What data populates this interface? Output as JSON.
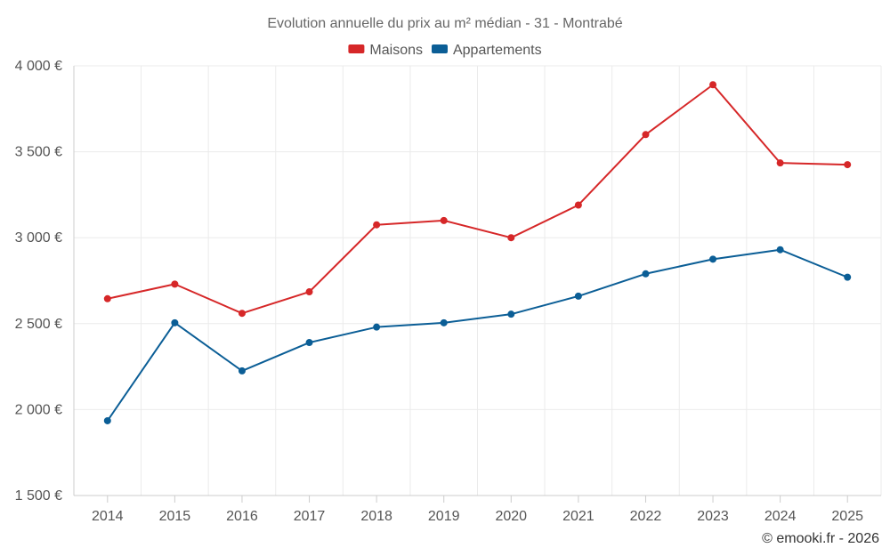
{
  "chart_data": {
    "type": "line",
    "title": "Evolution annuelle du prix au m² médian - 31 - Montrabé",
    "categories": [
      "2014",
      "2015",
      "2016",
      "2017",
      "2018",
      "2019",
      "2020",
      "2021",
      "2022",
      "2023",
      "2024",
      "2025"
    ],
    "series": [
      {
        "name": "Maisons",
        "color": "#d62728",
        "values": [
          2645,
          2730,
          2560,
          2685,
          3075,
          3100,
          3000,
          3190,
          3600,
          3890,
          3435,
          3425
        ]
      },
      {
        "name": "Appartements",
        "color": "#0b5e96",
        "values": [
          1935,
          2505,
          2225,
          2390,
          2480,
          2505,
          2555,
          2660,
          2790,
          2875,
          2930,
          2770
        ]
      }
    ],
    "ylim": [
      1500,
      4000
    ],
    "yticks": [
      1500,
      2000,
      2500,
      3000,
      3500,
      4000
    ],
    "ytick_labels": [
      "1 500 €",
      "2 000 €",
      "2 500 €",
      "3 000 €",
      "3 500 €",
      "4 000 €"
    ],
    "xlabel": "",
    "ylabel": "",
    "grid": true,
    "legend_position": "top-center"
  },
  "credit": "© emooki.fr - 2026"
}
